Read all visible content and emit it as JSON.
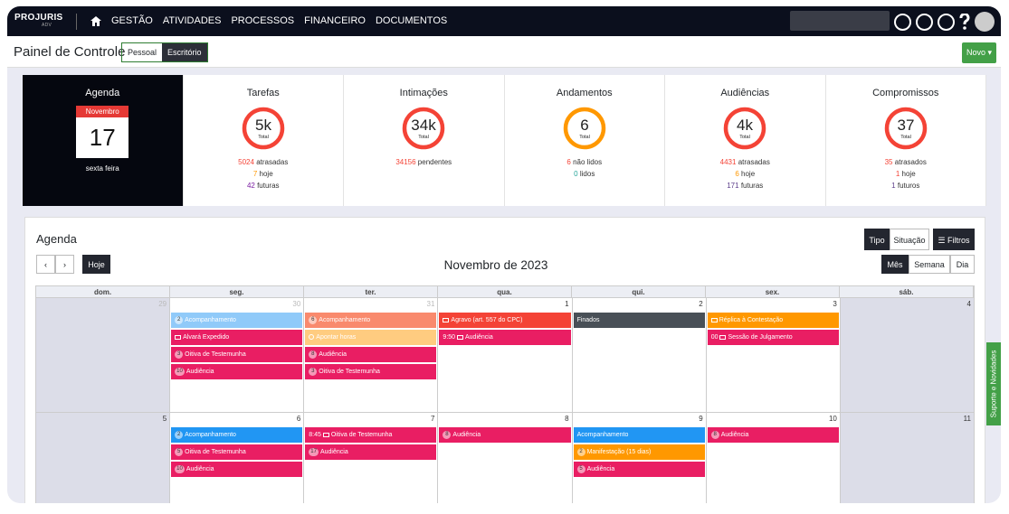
{
  "nav": {
    "logo": "PROJURIS",
    "logo_sub": "ADV",
    "items": [
      "GESTÃO",
      "ATIVIDADES",
      "PROCESSOS",
      "FINANCEIRO",
      "DOCUMENTOS"
    ]
  },
  "header": {
    "title": "Painel de Controle",
    "tabs": [
      "Pessoal",
      "Escritório"
    ],
    "new_button": "Novo"
  },
  "summary": {
    "agenda": {
      "title": "Agenda",
      "month": "Novembro",
      "day": "17",
      "weekday": "sexta feira"
    },
    "cards": [
      {
        "title": "Tarefas",
        "value": "5k",
        "unit": "Total",
        "ring_color": "#f44336",
        "lines": [
          {
            "count": "5024",
            "text": "atrasadas",
            "color": "#f44336"
          },
          {
            "count": "7",
            "text": "hoje",
            "color": "#ff9800"
          },
          {
            "count": "42",
            "text": "futuras",
            "color": "#7b1fa2"
          }
        ]
      },
      {
        "title": "Intimações",
        "value": "34k",
        "unit": "Total",
        "ring_color": "#f44336",
        "lines": [
          {
            "count": "34156",
            "text": "pendentes",
            "color": "#f44336"
          }
        ]
      },
      {
        "title": "Andamentos",
        "value": "6",
        "unit": "Total",
        "ring_color": "#ff9800",
        "lines": [
          {
            "count": "6",
            "text": "não lidos",
            "color": "#f44336"
          },
          {
            "count": "0",
            "text": "lidos",
            "color": "#26a69a"
          }
        ]
      },
      {
        "title": "Audiências",
        "value": "4k",
        "unit": "Total",
        "ring_color": "#f44336",
        "lines": [
          {
            "count": "4431",
            "text": "atrasadas",
            "color": "#f44336"
          },
          {
            "count": "6",
            "text": "hoje",
            "color": "#ff9800"
          },
          {
            "count": "171",
            "text": "futuras",
            "color": "#5c3d8a"
          }
        ]
      },
      {
        "title": "Compromissos",
        "value": "37",
        "unit": "Total",
        "ring_color": "#f44336",
        "lines": [
          {
            "count": "35",
            "text": "atrasados",
            "color": "#f44336"
          },
          {
            "count": "1",
            "text": "hoje",
            "color": "#f44336"
          },
          {
            "count": "1",
            "text": "futuros",
            "color": "#5c3d8a"
          }
        ]
      }
    ]
  },
  "calendar": {
    "title": "Agenda",
    "today_button": "Hoje",
    "filter_tabs": [
      "Tipo",
      "Situação"
    ],
    "filters_button": "Filtros",
    "month_label": "Novembro de 2023",
    "views": [
      "Mês",
      "Semana",
      "Dia"
    ],
    "weekdays": [
      "dom.",
      "seg.",
      "ter.",
      "qua.",
      "qui.",
      "sex.",
      "sáb."
    ],
    "weeks": [
      [
        {
          "day": "29",
          "other_month": true,
          "events": []
        },
        {
          "day": "30",
          "other_month": true,
          "events": [
            {
              "badge": "2",
              "label": "Acompanhamento",
              "color": "#90caf9"
            },
            {
              "folder": true,
              "label": "Alvará Expedido",
              "color": "#e91e63"
            },
            {
              "badge": "3",
              "label": "Oitiva de Testemunha",
              "color": "#e91e63"
            },
            {
              "badge": "10",
              "label": "Audiência",
              "color": "#e91e63"
            }
          ]
        },
        {
          "day": "31",
          "other_month": true,
          "events": [
            {
              "badge": "6",
              "label": "Acompanhamento",
              "color": "#f98a6d"
            },
            {
              "clock": true,
              "label": "Apontar horas",
              "color": "#ffcc80"
            },
            {
              "badge": "8",
              "label": "Audiência",
              "color": "#e91e63"
            },
            {
              "badge": "3",
              "label": "Oitiva de Testemunha",
              "color": "#e91e63"
            }
          ]
        },
        {
          "day": "1",
          "events": [
            {
              "folder": true,
              "label": "Agravo (art. 557 do CPC)",
              "color": "#f44336"
            },
            {
              "time": "9:50",
              "folder": true,
              "label": "Audiência",
              "color": "#e91e63"
            }
          ]
        },
        {
          "day": "2",
          "events": [
            {
              "label": "Finados",
              "color": "#495057"
            }
          ]
        },
        {
          "day": "3",
          "events": [
            {
              "folder": true,
              "label": "Réplica à Contestação",
              "color": "#ff9800"
            },
            {
              "time": "00",
              "folder": true,
              "label": "Sessão de Julgamento",
              "color": "#e91e63"
            }
          ]
        },
        {
          "day": "4",
          "events": []
        }
      ],
      [
        {
          "day": "5",
          "events": []
        },
        {
          "day": "6",
          "events": [
            {
              "badge": "2",
              "label": "Acompanhamento",
              "color": "#2196f3"
            },
            {
              "badge": "5",
              "label": "Oitiva de Testemunha",
              "color": "#e91e63"
            },
            {
              "badge": "10",
              "label": "Audiência",
              "color": "#e91e63"
            }
          ]
        },
        {
          "day": "7",
          "events": [
            {
              "time": "8:45",
              "folder": true,
              "label": "Oitiva de Testemunha",
              "color": "#e91e63"
            },
            {
              "badge": "17",
              "label": "Audiência",
              "color": "#e91e63"
            }
          ]
        },
        {
          "day": "8",
          "events": [
            {
              "badge": "8",
              "label": "Audiência",
              "color": "#e91e63"
            }
          ]
        },
        {
          "day": "9",
          "events": [
            {
              "label": "Acompanhamento",
              "color": "#2196f3"
            },
            {
              "badge": "2",
              "label": "Manifestação (15 dias)",
              "color": "#ff9800"
            },
            {
              "badge": "5",
              "label": "Audiência",
              "color": "#e91e63"
            }
          ]
        },
        {
          "day": "10",
          "events": [
            {
              "badge": "8",
              "label": "Audiência",
              "color": "#e91e63"
            }
          ]
        },
        {
          "day": "11",
          "events": []
        }
      ]
    ]
  },
  "side_tab": "Suporte e Novidades"
}
